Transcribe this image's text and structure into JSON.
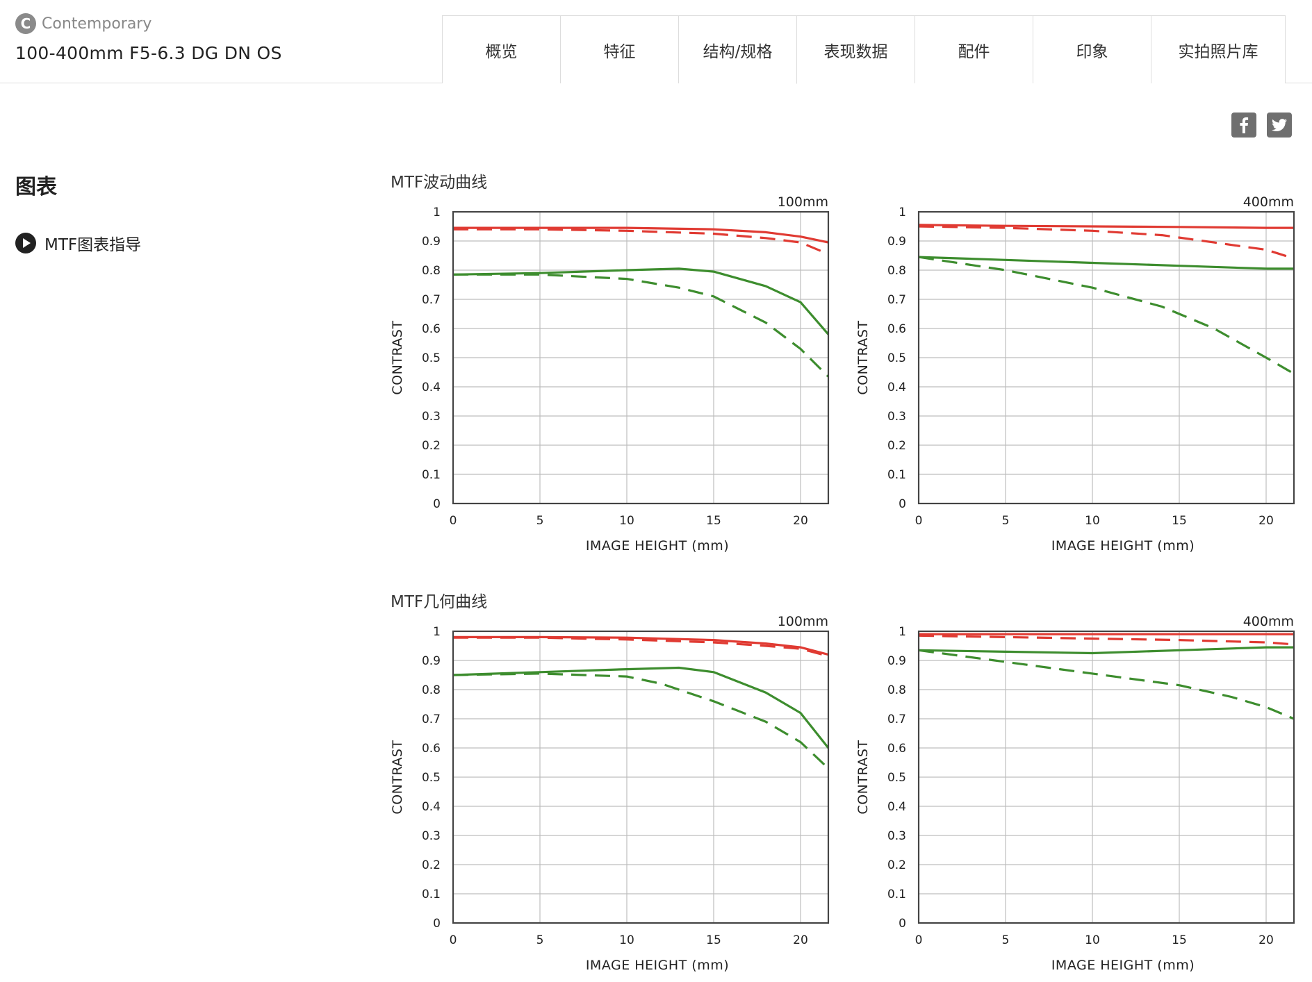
{
  "header": {
    "brand_logo_letter": "C",
    "brand": "Contemporary",
    "product": "100-400mm F5-6.3 DG DN OS",
    "tabs": [
      "概览",
      "特征",
      "结构/规格",
      "表现数据",
      "配件",
      "印象",
      "实拍照片库"
    ],
    "active_tab": 3
  },
  "social": {
    "facebook_icon": "facebook-icon",
    "twitter_icon": "twitter-icon"
  },
  "sidebar": {
    "title": "图表",
    "link": "MTF图表指导"
  },
  "sections": [
    {
      "title": "MTF波动曲线"
    },
    {
      "title": "MTF几何曲线"
    }
  ],
  "colors": {
    "red": "#e03a32",
    "green": "#3d8d2e",
    "grid": "#bdbdbd",
    "axis": "#444444"
  },
  "chart_data": [
    {
      "type": "line",
      "section": 0,
      "focal": "100mm",
      "xlabel": "IMAGE HEIGHT (mm)",
      "ylabel": "CONTRAST",
      "xlim": [
        0,
        21.6
      ],
      "ylim": [
        0,
        1
      ],
      "xticks": [
        "0",
        "5",
        "10",
        "15",
        "20"
      ],
      "yticks": [
        "0",
        "0.1",
        "0.2",
        "0.3",
        "0.4",
        "0.5",
        "0.6",
        "0.7",
        "0.8",
        "0.9",
        "1"
      ],
      "series": [
        {
          "color": "red",
          "dash": false,
          "x": [
            0,
            5,
            10,
            15,
            18,
            20,
            21.6
          ],
          "y": [
            0.945,
            0.945,
            0.945,
            0.94,
            0.93,
            0.915,
            0.895
          ]
        },
        {
          "color": "red",
          "dash": true,
          "x": [
            0,
            5,
            10,
            15,
            18,
            20,
            21.6
          ],
          "y": [
            0.94,
            0.94,
            0.935,
            0.925,
            0.91,
            0.895,
            0.855
          ]
        },
        {
          "color": "green",
          "dash": false,
          "x": [
            0,
            5,
            10,
            13,
            15,
            18,
            20,
            21.6
          ],
          "y": [
            0.785,
            0.79,
            0.8,
            0.805,
            0.795,
            0.745,
            0.69,
            0.58
          ]
        },
        {
          "color": "green",
          "dash": true,
          "x": [
            0,
            5,
            10,
            13,
            15,
            18,
            20,
            21.6
          ],
          "y": [
            0.785,
            0.785,
            0.77,
            0.74,
            0.71,
            0.62,
            0.53,
            0.435
          ]
        }
      ]
    },
    {
      "type": "line",
      "section": 0,
      "focal": "400mm",
      "xlabel": "IMAGE HEIGHT (mm)",
      "ylabel": "CONTRAST",
      "xlim": [
        0,
        21.6
      ],
      "ylim": [
        0,
        1
      ],
      "xticks": [
        "0",
        "5",
        "10",
        "15",
        "20"
      ],
      "yticks": [
        "0",
        "0.1",
        "0.2",
        "0.3",
        "0.4",
        "0.5",
        "0.6",
        "0.7",
        "0.8",
        "0.9",
        "1"
      ],
      "series": [
        {
          "color": "red",
          "dash": false,
          "x": [
            0,
            5,
            10,
            15,
            20,
            21.6
          ],
          "y": [
            0.955,
            0.952,
            0.95,
            0.948,
            0.945,
            0.945
          ]
        },
        {
          "color": "red",
          "dash": true,
          "x": [
            0,
            5,
            10,
            14,
            17,
            20,
            21.6
          ],
          "y": [
            0.95,
            0.945,
            0.935,
            0.92,
            0.895,
            0.87,
            0.84
          ]
        },
        {
          "color": "green",
          "dash": false,
          "x": [
            0,
            5,
            10,
            15,
            20,
            21.6
          ],
          "y": [
            0.845,
            0.835,
            0.825,
            0.815,
            0.805,
            0.805
          ]
        },
        {
          "color": "green",
          "dash": true,
          "x": [
            0,
            5,
            10,
            14,
            17,
            20,
            21.6
          ],
          "y": [
            0.845,
            0.8,
            0.74,
            0.675,
            0.6,
            0.5,
            0.445
          ]
        }
      ]
    },
    {
      "type": "line",
      "section": 1,
      "focal": "100mm",
      "xlabel": "IMAGE HEIGHT (mm)",
      "ylabel": "CONTRAST",
      "xlim": [
        0,
        21.6
      ],
      "ylim": [
        0,
        1
      ],
      "xticks": [
        "0",
        "5",
        "10",
        "15",
        "20"
      ],
      "yticks": [
        "0",
        "0.1",
        "0.2",
        "0.3",
        "0.4",
        "0.5",
        "0.6",
        "0.7",
        "0.8",
        "0.9",
        "1"
      ],
      "series": [
        {
          "color": "red",
          "dash": false,
          "x": [
            0,
            5,
            10,
            15,
            18,
            20,
            21.6
          ],
          "y": [
            0.98,
            0.98,
            0.978,
            0.97,
            0.958,
            0.945,
            0.92
          ]
        },
        {
          "color": "red",
          "dash": true,
          "x": [
            0,
            5,
            10,
            15,
            18,
            20,
            21.6
          ],
          "y": [
            0.978,
            0.978,
            0.972,
            0.962,
            0.95,
            0.94,
            0.915
          ]
        },
        {
          "color": "green",
          "dash": false,
          "x": [
            0,
            5,
            10,
            13,
            15,
            18,
            20,
            21.6
          ],
          "y": [
            0.85,
            0.86,
            0.87,
            0.875,
            0.86,
            0.79,
            0.72,
            0.6
          ]
        },
        {
          "color": "green",
          "dash": true,
          "x": [
            0,
            5,
            10,
            12,
            15,
            18,
            20,
            21.6
          ],
          "y": [
            0.85,
            0.855,
            0.845,
            0.82,
            0.76,
            0.69,
            0.62,
            0.53
          ]
        }
      ]
    },
    {
      "type": "line",
      "section": 1,
      "focal": "400mm",
      "xlabel": "IMAGE HEIGHT (mm)",
      "ylabel": "CONTRAST",
      "xlim": [
        0,
        21.6
      ],
      "ylim": [
        0,
        1
      ],
      "xticks": [
        "0",
        "5",
        "10",
        "15",
        "20"
      ],
      "yticks": [
        "0",
        "0.1",
        "0.2",
        "0.3",
        "0.4",
        "0.5",
        "0.6",
        "0.7",
        "0.8",
        "0.9",
        "1"
      ],
      "series": [
        {
          "color": "red",
          "dash": false,
          "x": [
            0,
            5,
            10,
            15,
            20,
            21.6
          ],
          "y": [
            0.99,
            0.99,
            0.99,
            0.99,
            0.99,
            0.99
          ]
        },
        {
          "color": "red",
          "dash": true,
          "x": [
            0,
            5,
            10,
            15,
            20,
            21.6
          ],
          "y": [
            0.985,
            0.98,
            0.975,
            0.97,
            0.962,
            0.955
          ]
        },
        {
          "color": "green",
          "dash": false,
          "x": [
            0,
            5,
            10,
            15,
            20,
            21.6
          ],
          "y": [
            0.935,
            0.93,
            0.925,
            0.935,
            0.945,
            0.945
          ]
        },
        {
          "color": "green",
          "dash": true,
          "x": [
            0,
            5,
            10,
            15,
            18,
            20,
            21.6
          ],
          "y": [
            0.935,
            0.895,
            0.855,
            0.815,
            0.775,
            0.74,
            0.7
          ]
        }
      ]
    }
  ]
}
